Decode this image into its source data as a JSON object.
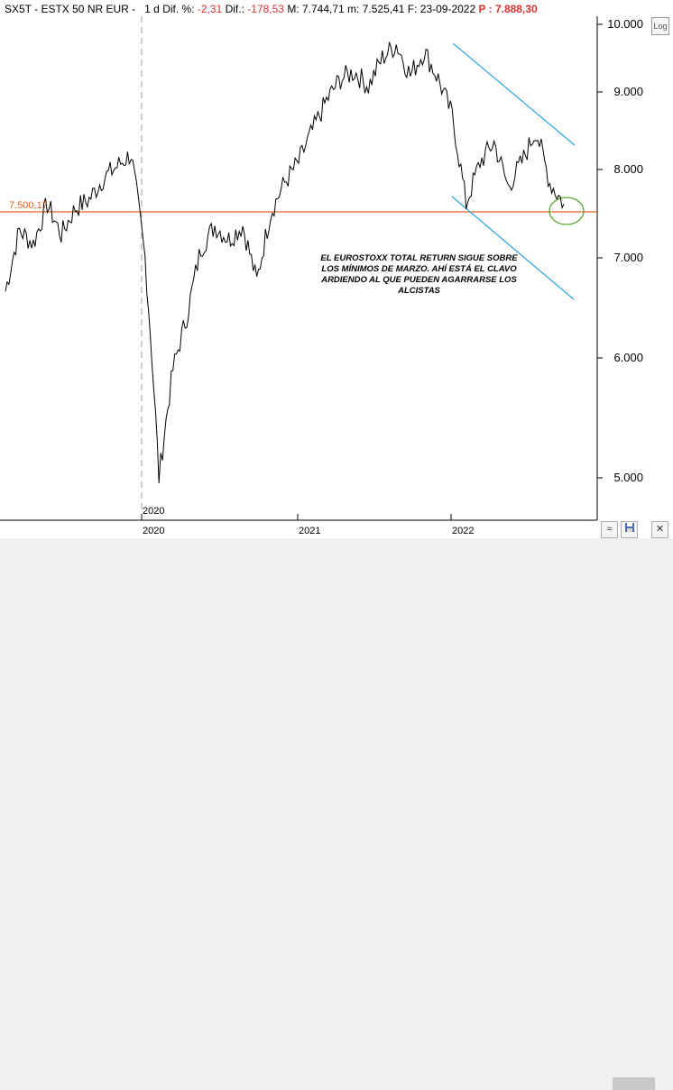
{
  "header": {
    "symbol": "SX5T - ESTX 50 NR EUR -",
    "period": "1 d",
    "dif_pct_label": "Dif. %:",
    "dif_pct_value": "-2,31",
    "dif_label": "Dif.:",
    "dif_value": "-178,53",
    "max_label": "M: 7.744,71",
    "min_label": "m: 7.525,41",
    "date_label": "F: 23-09-2022",
    "price_label": "P : 7.888,30"
  },
  "log_button": "Log",
  "reference_line": {
    "label": "7.500,17",
    "value": 7500.17,
    "color": "#e6641e"
  },
  "annotation": "EL EUROSTOXX TOTAL RETURN SIGUE SOBRE LOS MÍNIMOS DE MARZO. AHÍ ESTÁ EL CLAVO ARDIENDO AL QUE PUEDEN AGARRARSE LOS ALCISTAS",
  "y_axis": {
    "ticks": [
      "10.000",
      "9.000",
      "8.000",
      "7.000",
      "6.000",
      "5.000"
    ]
  },
  "x_axis": {
    "ticks": [
      "2020",
      "2021",
      "2022"
    ]
  },
  "date_flag": "2020",
  "colors": {
    "channel": "#29a3e0",
    "circle": "#5aa02c",
    "series": "#000000"
  },
  "chart_data": {
    "type": "line",
    "series": [
      {
        "values": [
          6650,
          7300,
          7150,
          7600,
          7250,
          7550,
          7650,
          7900,
          8050,
          8200,
          7000,
          5000,
          5900,
          6400,
          7100,
          7350,
          7200,
          7350,
          6750,
          7500,
          7850,
          8100,
          8500,
          8900,
          9200,
          9300,
          9100,
          9500,
          9700,
          9250,
          9600,
          9200,
          8700,
          7600,
          8100,
          8350,
          7800,
          8100,
          8500,
          7850,
          7600
        ]
      }
    ]
  },
  "icons": [
    "log-scale-icon",
    "waveform-icon",
    "save-icon",
    "close-icon"
  ]
}
